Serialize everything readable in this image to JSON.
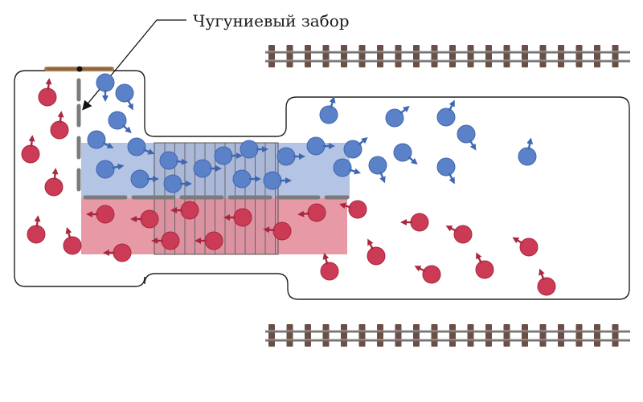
{
  "diagram": {
    "fence_label": "Чугуниевый забор"
  },
  "colors": {
    "blue_person": "#5b82c8",
    "blue_edge": "#3f67b0",
    "red_person": "#cc3b55",
    "red_edge": "#a8283f",
    "blue_corridor": "#b3c4e4",
    "red_corridor": "#e79aa6",
    "fence": "#7b7b7b",
    "gate": "#a57a4c",
    "rail": "#6d6d6d",
    "sleeper": "#6b4e44"
  }
}
